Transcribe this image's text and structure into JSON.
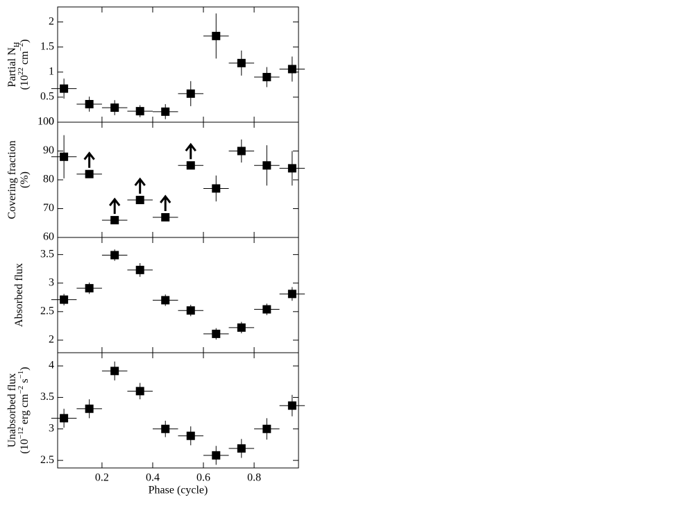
{
  "chart_data": [
    {
      "type": "scatter",
      "y_label": [
        [
          {
            "t": "Partial N"
          },
          {
            "t": "H",
            "sub": true
          }
        ],
        [
          {
            "t": "(10"
          },
          {
            "t": "22",
            "sup": true
          },
          {
            "t": " cm"
          },
          {
            "t": "−2",
            "sup": true
          },
          {
            "t": ")"
          }
        ]
      ],
      "x": [
        0.05,
        0.15,
        0.25,
        0.35,
        0.45,
        0.55,
        0.65,
        0.75,
        0.85,
        0.95
      ],
      "xerr": [
        0.05,
        0.05,
        0.05,
        0.05,
        0.05,
        0.05,
        0.05,
        0.05,
        0.05,
        0.05
      ],
      "values": [
        0.67,
        0.36,
        0.29,
        0.22,
        0.21,
        0.57,
        1.72,
        1.18,
        0.9,
        1.06
      ],
      "yerr": [
        0.2,
        0.15,
        0.15,
        0.12,
        0.15,
        0.25,
        0.45,
        0.25,
        0.2,
        0.25
      ],
      "color": "#000000",
      "xlim": [
        0.025,
        0.975
      ],
      "xticks": [
        0.2,
        0.4,
        0.6,
        0.8
      ],
      "ylim": [
        0,
        2.3
      ],
      "yticks": [
        0,
        0.5,
        1,
        1.5,
        2
      ]
    },
    {
      "type": "scatter",
      "y_label": [
        [
          {
            "t": "Covering fraction"
          }
        ],
        [
          {
            "t": "(%)"
          }
        ]
      ],
      "x": [
        0.05,
        0.15,
        0.25,
        0.35,
        0.45,
        0.55,
        0.65,
        0.75,
        0.85,
        0.95
      ],
      "xerr": [
        0.05,
        0.05,
        0.05,
        0.05,
        0.05,
        0.05,
        0.05,
        0.05,
        0.05,
        0.05
      ],
      "values": [
        88,
        82,
        66,
        73,
        67,
        85,
        77,
        90,
        85,
        84
      ],
      "yerr": [
        7.5,
        null,
        null,
        null,
        null,
        null,
        4.5,
        4,
        7,
        6
      ],
      "lower_limit": [
        false,
        true,
        true,
        true,
        true,
        true,
        false,
        false,
        false,
        false
      ],
      "color": "#000000",
      "xlim": [
        0.025,
        0.975
      ],
      "xticks": [
        0.2,
        0.4,
        0.6,
        0.8
      ],
      "ylim": [
        60,
        100
      ],
      "yticks": [
        60,
        70,
        80,
        90,
        100
      ]
    },
    {
      "type": "scatter",
      "y_label": [
        [
          {
            "t": "Absorbed flux"
          }
        ]
      ],
      "x": [
        0.05,
        0.15,
        0.25,
        0.35,
        0.45,
        0.55,
        0.65,
        0.75,
        0.85,
        0.95
      ],
      "xerr": [
        0.05,
        0.05,
        0.05,
        0.05,
        0.05,
        0.05,
        0.05,
        0.05,
        0.05,
        0.05
      ],
      "values": [
        2.71,
        2.91,
        3.49,
        3.23,
        2.7,
        2.52,
        2.11,
        2.22,
        2.54,
        2.81
      ],
      "yerr": [
        0.1,
        0.1,
        0.1,
        0.12,
        0.1,
        0.1,
        0.1,
        0.1,
        0.1,
        0.12
      ],
      "color": "#000000",
      "xlim": [
        0.025,
        0.975
      ],
      "xticks": [
        0.2,
        0.4,
        0.6,
        0.8
      ],
      "ylim": [
        1.78,
        3.8
      ],
      "yticks": [
        2,
        2.5,
        3,
        3.5
      ]
    },
    {
      "type": "scatter",
      "y_label": [
        [
          {
            "t": "Unabsorbed flux"
          }
        ],
        [
          {
            "t": "(10"
          },
          {
            "t": "−12",
            "sup": true
          },
          {
            "t": " erg cm"
          },
          {
            "t": "−2",
            "sup": true
          },
          {
            "t": " s"
          },
          {
            "t": "−1",
            "sup": true
          },
          {
            "t": ")"
          }
        ]
      ],
      "x_label": "Phase (cycle)",
      "x": [
        0.05,
        0.15,
        0.25,
        0.35,
        0.45,
        0.55,
        0.65,
        0.75,
        0.85,
        0.95
      ],
      "xerr": [
        0.05,
        0.05,
        0.05,
        0.05,
        0.05,
        0.05,
        0.05,
        0.05,
        0.05,
        0.05
      ],
      "values": [
        3.17,
        3.32,
        3.92,
        3.6,
        3.0,
        2.89,
        2.58,
        2.69,
        3.0,
        3.37
      ],
      "yerr": [
        0.15,
        0.15,
        0.15,
        0.13,
        0.13,
        0.15,
        0.15,
        0.15,
        0.17,
        0.17
      ],
      "color": "#000000",
      "xlim": [
        0.025,
        0.975
      ],
      "xticks": [
        0.2,
        0.4,
        0.6,
        0.8
      ],
      "ylim": [
        2.38,
        4.21
      ],
      "yticks": [
        2.5,
        3,
        3.5,
        4
      ]
    }
  ]
}
